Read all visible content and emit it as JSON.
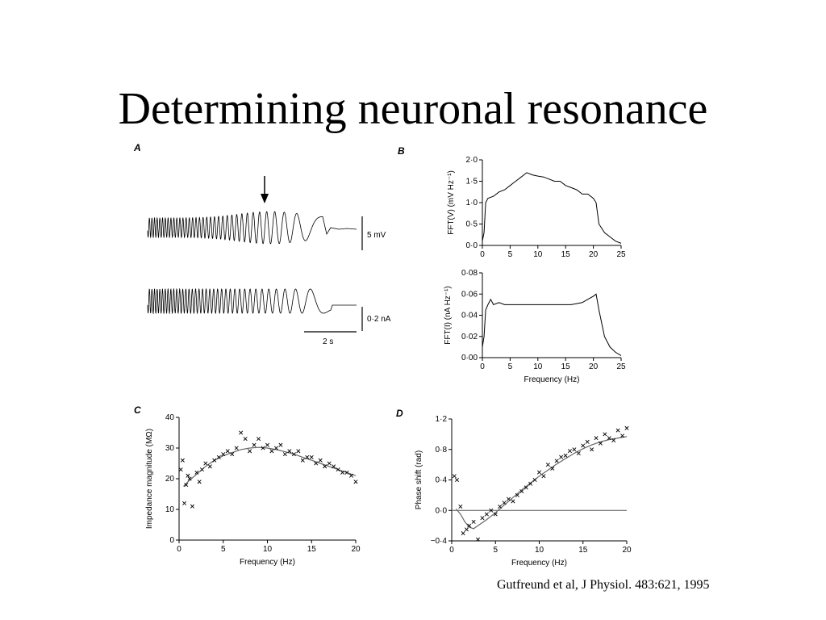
{
  "slide": {
    "title": "Determining neuronal resonance",
    "citation": "Gutfreund et al, J Physiol. 483:621, 1995"
  },
  "trace_labels": {
    "voltage_scale": "5 mV",
    "current_scale": "0·2 nA",
    "time_scale": "2 s"
  },
  "chart_data": [
    {
      "panel": "A",
      "type": "line",
      "description_series": [
        "membrane voltage response to ZAP current",
        "injected ZAP current"
      ],
      "scale_bars": {
        "voltage": "5 mV",
        "current": "0·2 nA",
        "time": "2 s"
      }
    },
    {
      "panel": "B",
      "type": "line",
      "xlabel": "",
      "ylabel": "FFT(V) (mV Hz⁻¹)",
      "xlim": [
        0,
        25
      ],
      "ylim": [
        0,
        2
      ],
      "xticks": [
        "0",
        "5",
        "10",
        "15",
        "20",
        "25"
      ],
      "yticks": [
        "0·0",
        "0·5",
        "1·0",
        "1·5",
        "2·0"
      ],
      "x": [
        0,
        0.3,
        0.6,
        1,
        2,
        3,
        4,
        5,
        6,
        7,
        8,
        9,
        10,
        11,
        12,
        13,
        14,
        15,
        16,
        17,
        18,
        19,
        20,
        20.5,
        21,
        22,
        23,
        24,
        25
      ],
      "values": [
        0.1,
        0.3,
        1.0,
        1.1,
        1.15,
        1.25,
        1.3,
        1.4,
        1.5,
        1.6,
        1.7,
        1.65,
        1.62,
        1.6,
        1.55,
        1.5,
        1.5,
        1.4,
        1.35,
        1.3,
        1.2,
        1.2,
        1.1,
        1.0,
        0.5,
        0.3,
        0.2,
        0.1,
        0.05
      ]
    },
    {
      "panel": "B",
      "type": "line",
      "xlabel": "Frequency (Hz)",
      "ylabel": "FFT(I) (nA Hz⁻¹)",
      "xlim": [
        0,
        25
      ],
      "ylim": [
        0,
        0.08
      ],
      "xticks": [
        "0",
        "5",
        "10",
        "15",
        "20",
        "25"
      ],
      "yticks": [
        "0·00",
        "0·02",
        "0·04",
        "0·06",
        "0·08"
      ],
      "x": [
        0,
        0.3,
        0.6,
        1,
        1.5,
        2,
        3,
        4,
        5,
        6,
        8,
        10,
        12,
        14,
        16,
        18,
        19,
        20,
        20.5,
        21,
        22,
        23,
        24,
        25
      ],
      "values": [
        0.01,
        0.02,
        0.045,
        0.05,
        0.055,
        0.05,
        0.052,
        0.05,
        0.05,
        0.05,
        0.05,
        0.05,
        0.05,
        0.05,
        0.05,
        0.052,
        0.055,
        0.058,
        0.06,
        0.045,
        0.02,
        0.01,
        0.005,
        0.002
      ]
    },
    {
      "panel": "C",
      "type": "scatter",
      "xlabel": "Frequency (Hz)",
      "ylabel": "Impedance magnitude (MΩ)",
      "xlim": [
        0,
        20
      ],
      "ylim": [
        0,
        40
      ],
      "xticks": [
        "0",
        "5",
        "10",
        "15",
        "20"
      ],
      "yticks": [
        "0",
        "10",
        "20",
        "30",
        "40"
      ],
      "fit_x": [
        0.5,
        1,
        2,
        3,
        4,
        5,
        6,
        7,
        8,
        9,
        10,
        11,
        12,
        13,
        14,
        15,
        16,
        17,
        18,
        19,
        20
      ],
      "fit_y": [
        17.5,
        19,
        21.5,
        24,
        26,
        27.5,
        28.5,
        29.5,
        30,
        30.2,
        30,
        29.5,
        28.8,
        28,
        27,
        26,
        25,
        24,
        23,
        22,
        21
      ],
      "points_x": [
        0.2,
        0.4,
        0.6,
        0.8,
        1,
        1.2,
        1.5,
        2,
        2.3,
        2.6,
        3,
        3.5,
        4,
        4.5,
        5,
        5.5,
        6,
        6.5,
        7,
        7.5,
        8,
        8.5,
        9,
        9.5,
        10,
        10.5,
        11,
        11.5,
        12,
        12.5,
        13,
        13.5,
        14,
        14.5,
        15,
        15.5,
        16,
        16.5,
        17,
        17.5,
        18,
        18.5,
        19,
        19.5,
        20
      ],
      "points_y": [
        23,
        26,
        12,
        18,
        21,
        20,
        11,
        22,
        19,
        23,
        25,
        24,
        26,
        27,
        28,
        29,
        28,
        30,
        35,
        33,
        29,
        31,
        33,
        30,
        31,
        29,
        30,
        31,
        28,
        29,
        28,
        29,
        26,
        27,
        27,
        25,
        26,
        24,
        25,
        24,
        23,
        22,
        22,
        21,
        19
      ]
    },
    {
      "panel": "D",
      "type": "scatter",
      "xlabel": "Frequency (Hz)",
      "ylabel": "Phase shift (rad)",
      "xlim": [
        0,
        20
      ],
      "ylim": [
        -0.4,
        1.2
      ],
      "xticks": [
        "0",
        "5",
        "10",
        "15",
        "20"
      ],
      "yticks": [
        "−0·4",
        "0·0",
        "0·4",
        "0·8",
        "1·2"
      ],
      "fit_x": [
        0.5,
        1,
        1.5,
        2,
        2.5,
        3,
        4,
        5,
        6,
        7,
        8,
        9,
        10,
        11,
        12,
        13,
        14,
        15,
        16,
        17,
        18,
        19,
        20
      ],
      "fit_y": [
        0.02,
        -0.05,
        -0.15,
        -0.22,
        -0.24,
        -0.2,
        -0.12,
        -0.03,
        0.07,
        0.17,
        0.27,
        0.36,
        0.45,
        0.53,
        0.61,
        0.68,
        0.75,
        0.81,
        0.86,
        0.9,
        0.93,
        0.95,
        0.97
      ],
      "points_x": [
        0.3,
        0.6,
        1,
        1.3,
        1.7,
        2,
        2.5,
        3,
        3.5,
        4,
        4.5,
        5,
        5.5,
        6,
        6.5,
        7,
        7.5,
        8,
        8.5,
        9,
        9.5,
        10,
        10.5,
        11,
        11.5,
        12,
        12.5,
        13,
        13.5,
        14,
        14.5,
        15,
        15.5,
        16,
        16.5,
        17,
        17.5,
        18,
        18.5,
        19,
        19.5,
        20
      ],
      "points_y": [
        0.45,
        0.4,
        0.05,
        -0.3,
        -0.25,
        -0.2,
        -0.15,
        -0.38,
        -0.1,
        -0.05,
        0.0,
        -0.05,
        0.05,
        0.1,
        0.15,
        0.12,
        0.2,
        0.25,
        0.3,
        0.35,
        0.4,
        0.5,
        0.45,
        0.6,
        0.55,
        0.65,
        0.7,
        0.72,
        0.78,
        0.8,
        0.75,
        0.85,
        0.9,
        0.8,
        0.95,
        0.88,
        1.0,
        0.95,
        0.92,
        1.05,
        0.98,
        1.08
      ],
      "reference_line_y": 0.0
    }
  ]
}
